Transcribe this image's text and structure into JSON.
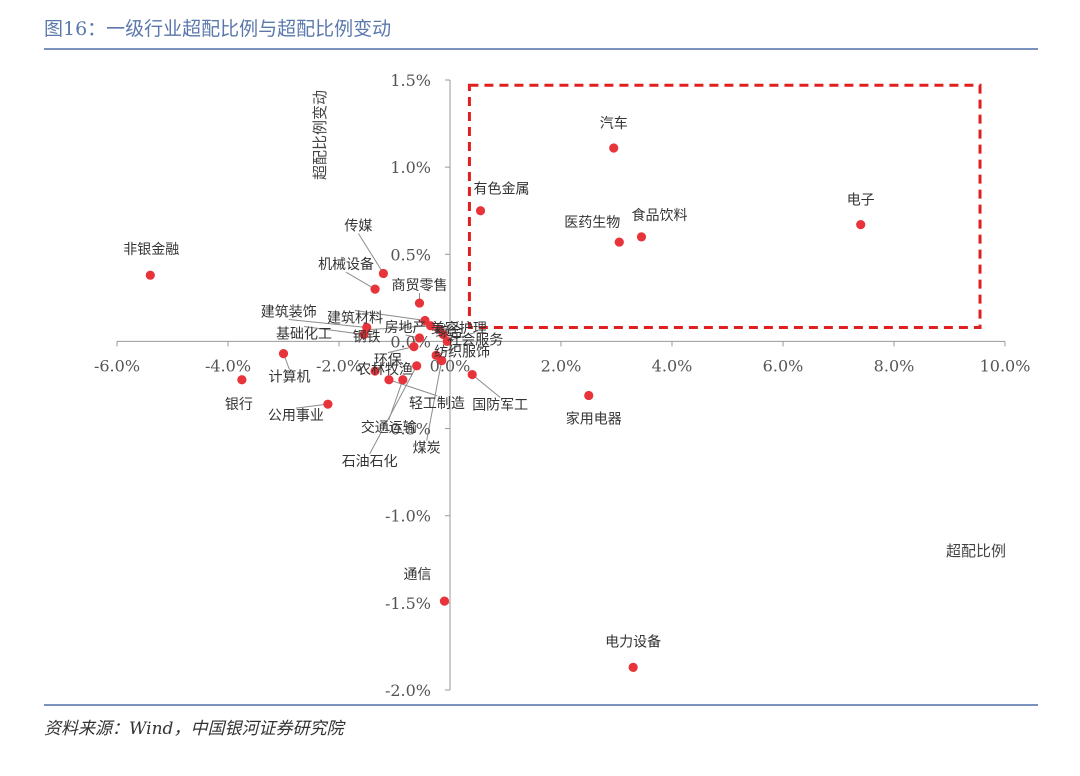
{
  "figure": {
    "title": "图16：一级行业超配比例与超配比例变动",
    "source": "资料来源：Wind，中国银河证券研究院"
  },
  "colors": {
    "title": "#5b78ad",
    "rule": "#7a92bd",
    "point": "#e8333a",
    "highlight_box": "#e02020",
    "axis": "#999999",
    "leader": "#8c8c8c"
  },
  "chart_data": {
    "type": "scatter",
    "xlabel": "超配比例",
    "ylabel": "超配比例变动",
    "xlim": [
      -6.0,
      10.0
    ],
    "ylim": [
      -2.0,
      1.5
    ],
    "xticks": [
      "-6.0%",
      "-4.0%",
      "-2.0%",
      "0.0%",
      "2.0%",
      "4.0%",
      "6.0%",
      "8.0%",
      "10.0%"
    ],
    "xtick_values": [
      -6,
      -4,
      -2,
      0,
      2,
      4,
      6,
      8,
      10
    ],
    "yticks": [
      "1.5%",
      "1.0%",
      "0.5%",
      "0.0%",
      "-0.5%",
      "-1.0%",
      "-1.5%",
      "-2.0%"
    ],
    "ytick_values": [
      1.5,
      1.0,
      0.5,
      0.0,
      -0.5,
      -1.0,
      -1.5,
      -2.0
    ],
    "grid": false,
    "highlight_region": {
      "x": [
        0.35,
        9.55
      ],
      "y": [
        0.08,
        1.47
      ],
      "style": "dashed"
    },
    "points": [
      {
        "label": "汽车",
        "x": 2.95,
        "y": 1.11
      },
      {
        "label": "电子",
        "x": 7.4,
        "y": 0.67
      },
      {
        "label": "食品饮料",
        "x": 3.45,
        "y": 0.6
      },
      {
        "label": "医药生物",
        "x": 3.05,
        "y": 0.57
      },
      {
        "label": "有色金属",
        "x": 0.55,
        "y": 0.75
      },
      {
        "label": "非银金融",
        "x": -5.4,
        "y": 0.38
      },
      {
        "label": "传媒",
        "x": -1.2,
        "y": 0.39
      },
      {
        "label": "机械设备",
        "x": -1.35,
        "y": 0.3
      },
      {
        "label": "商贸零售",
        "x": -0.55,
        "y": 0.22
      },
      {
        "label": "建筑材料",
        "x": -0.45,
        "y": 0.12
      },
      {
        "label": "钢铁",
        "x": -0.35,
        "y": 0.09
      },
      {
        "label": "美容护理",
        "x": -0.2,
        "y": 0.07
      },
      {
        "label": "综合",
        "x": -0.12,
        "y": 0.04
      },
      {
        "label": "建筑装饰",
        "x": -1.5,
        "y": 0.08
      },
      {
        "label": "房地产",
        "x": -0.55,
        "y": 0.02
      },
      {
        "label": "基础化工",
        "x": -1.55,
        "y": 0.04
      },
      {
        "label": "社会服务",
        "x": -0.05,
        "y": 0.0
      },
      {
        "label": "环保",
        "x": -0.65,
        "y": -0.03
      },
      {
        "label": "计算机",
        "x": -3.0,
        "y": -0.07
      },
      {
        "label": "纺织服饰",
        "x": -0.25,
        "y": -0.08
      },
      {
        "label": "银行",
        "x": -3.75,
        "y": -0.22
      },
      {
        "label": "农林牧渔",
        "x": -1.35,
        "y": -0.17
      },
      {
        "label": "轻工制造",
        "x": -1.1,
        "y": -0.22
      },
      {
        "label": "国防军工",
        "x": 0.4,
        "y": -0.19
      },
      {
        "label": "公用事业",
        "x": -2.2,
        "y": -0.36
      },
      {
        "label": "交通运输",
        "x": -0.85,
        "y": -0.22
      },
      {
        "label": "石油石化",
        "x": -0.6,
        "y": -0.14
      },
      {
        "label": "煤炭",
        "x": -0.15,
        "y": -0.11
      },
      {
        "label": "家用电器",
        "x": 2.5,
        "y": -0.31
      },
      {
        "label": "通信",
        "x": -0.1,
        "y": -1.49
      },
      {
        "label": "电力设备",
        "x": 3.3,
        "y": -1.87
      }
    ]
  }
}
